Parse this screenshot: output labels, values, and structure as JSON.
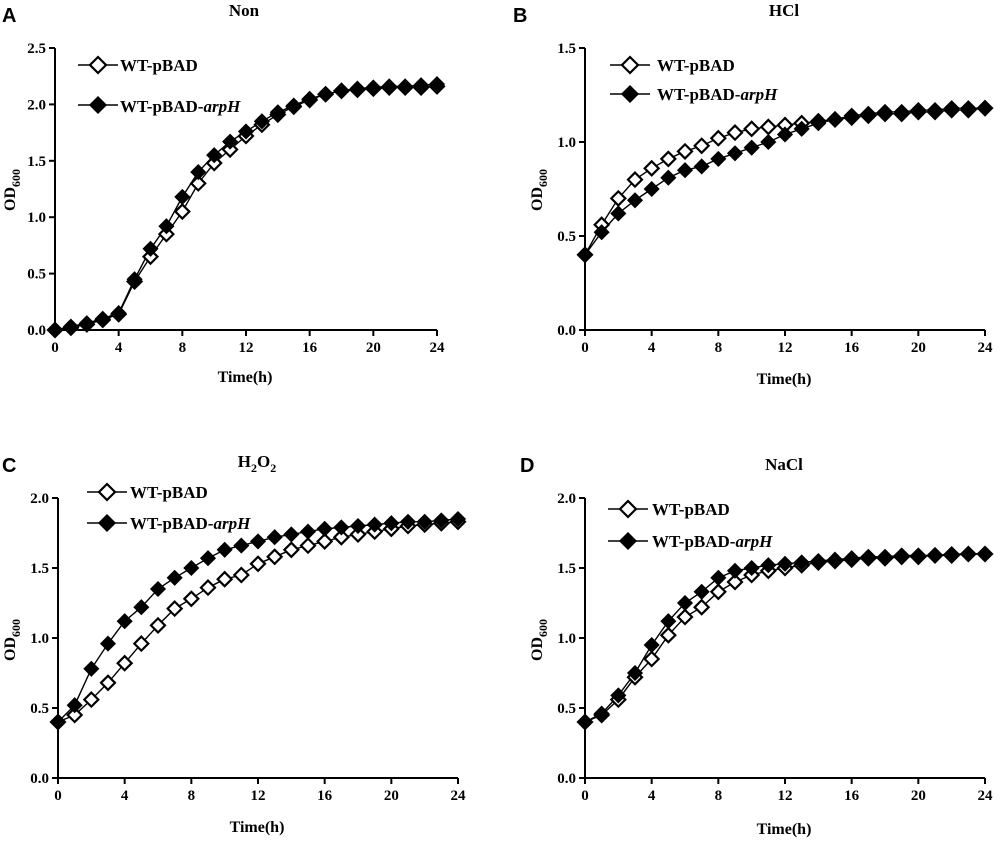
{
  "chart_data": [
    {
      "type": "line",
      "panel": "A",
      "title": "Non",
      "xlabel": "Time(h)",
      "ylabel_main": "OD",
      "ylabel_sub": "600",
      "xlim": [
        0,
        24
      ],
      "ylim": [
        0,
        2.5
      ],
      "xticks": [
        "0",
        "4",
        "8",
        "12",
        "16",
        "20",
        "24"
      ],
      "yticks": [
        "0.0",
        "0.5",
        "1.0",
        "1.5",
        "2.0",
        "2.5"
      ],
      "legend_position": "top-left",
      "series": [
        {
          "name": "WT-pBAD",
          "name_suffix": "",
          "marker": "open-diamond",
          "x": [
            0,
            1,
            2,
            3,
            4,
            5,
            6,
            7,
            8,
            9,
            10,
            11,
            12,
            13,
            14,
            15,
            16,
            17,
            18,
            19,
            20,
            21,
            22,
            23,
            24
          ],
          "y": [
            0.0,
            0.02,
            0.05,
            0.09,
            0.14,
            0.43,
            0.65,
            0.85,
            1.05,
            1.3,
            1.48,
            1.6,
            1.72,
            1.82,
            1.91,
            1.98,
            2.04,
            2.09,
            2.12,
            2.13,
            2.14,
            2.15,
            2.15,
            2.15,
            2.16
          ]
        },
        {
          "name": "WT-pBAD-",
          "name_suffix": "arpH",
          "marker": "filled-diamond",
          "x": [
            0,
            1,
            2,
            3,
            4,
            5,
            6,
            7,
            8,
            9,
            10,
            11,
            12,
            13,
            14,
            15,
            16,
            17,
            18,
            19,
            20,
            21,
            22,
            23,
            24
          ],
          "y": [
            0.0,
            0.03,
            0.06,
            0.1,
            0.15,
            0.45,
            0.72,
            0.92,
            1.18,
            1.4,
            1.55,
            1.67,
            1.76,
            1.85,
            1.93,
            1.99,
            2.05,
            2.09,
            2.12,
            2.14,
            2.15,
            2.16,
            2.16,
            2.17,
            2.18
          ]
        }
      ]
    },
    {
      "type": "line",
      "panel": "B",
      "title": "HCl",
      "xlabel": "Time(h)",
      "ylabel_main": "OD",
      "ylabel_sub": "600",
      "xlim": [
        0,
        24
      ],
      "ylim": [
        0,
        1.5
      ],
      "xticks": [
        "0",
        "4",
        "8",
        "12",
        "16",
        "20",
        "24"
      ],
      "yticks": [
        "0.0",
        "0.5",
        "1.0",
        "1.5"
      ],
      "legend_position": "top-left",
      "series": [
        {
          "name": "WT-pBAD",
          "name_suffix": "",
          "marker": "open-diamond",
          "x": [
            0,
            1,
            2,
            3,
            4,
            5,
            6,
            7,
            8,
            9,
            10,
            11,
            12,
            13,
            14,
            15,
            16,
            17,
            18,
            19,
            20,
            21,
            22,
            23,
            24
          ],
          "y": [
            0.4,
            0.56,
            0.7,
            0.8,
            0.86,
            0.91,
            0.95,
            0.98,
            1.02,
            1.05,
            1.07,
            1.08,
            1.09,
            1.1,
            1.11,
            1.12,
            1.13,
            1.14,
            1.15,
            1.15,
            1.16,
            1.16,
            1.17,
            1.17,
            1.18
          ]
        },
        {
          "name": "WT-pBAD-",
          "name_suffix": "arpH",
          "marker": "filled-diamond",
          "x": [
            0,
            1,
            2,
            3,
            4,
            5,
            6,
            7,
            8,
            9,
            10,
            11,
            12,
            13,
            14,
            15,
            16,
            17,
            18,
            19,
            20,
            21,
            22,
            23,
            24
          ],
          "y": [
            0.4,
            0.52,
            0.62,
            0.69,
            0.75,
            0.81,
            0.85,
            0.87,
            0.91,
            0.94,
            0.97,
            1.0,
            1.04,
            1.07,
            1.1,
            1.12,
            1.14,
            1.15,
            1.16,
            1.16,
            1.17,
            1.17,
            1.18,
            1.18,
            1.18
          ]
        }
      ]
    },
    {
      "type": "line",
      "panel": "C",
      "title_main": "H",
      "title_sub1": "2",
      "title_mid": "O",
      "title_sub2": "2",
      "xlabel": "Time(h)",
      "ylabel_main": "OD",
      "ylabel_sub": "600",
      "xlim": [
        0,
        24
      ],
      "ylim": [
        0,
        2.0
      ],
      "xticks": [
        "0",
        "4",
        "8",
        "12",
        "16",
        "20",
        "24"
      ],
      "yticks": [
        "0.0",
        "0.5",
        "1.0",
        "1.5",
        "2.0"
      ],
      "legend_position": "top-left",
      "series": [
        {
          "name": "WT-pBAD",
          "name_suffix": "",
          "marker": "open-diamond",
          "x": [
            0,
            1,
            2,
            3,
            4,
            5,
            6,
            7,
            8,
            9,
            10,
            11,
            12,
            13,
            14,
            15,
            16,
            17,
            18,
            19,
            20,
            21,
            22,
            23,
            24
          ],
          "y": [
            0.4,
            0.45,
            0.56,
            0.68,
            0.82,
            0.96,
            1.09,
            1.21,
            1.28,
            1.36,
            1.42,
            1.45,
            1.53,
            1.58,
            1.63,
            1.66,
            1.69,
            1.72,
            1.74,
            1.76,
            1.78,
            1.8,
            1.81,
            1.82,
            1.83
          ]
        },
        {
          "name": "WT-pBAD-",
          "name_suffix": "arpH",
          "marker": "filled-diamond",
          "x": [
            0,
            1,
            2,
            3,
            4,
            5,
            6,
            7,
            8,
            9,
            10,
            11,
            12,
            13,
            14,
            15,
            16,
            17,
            18,
            19,
            20,
            21,
            22,
            23,
            24
          ],
          "y": [
            0.4,
            0.52,
            0.78,
            0.96,
            1.12,
            1.22,
            1.35,
            1.43,
            1.5,
            1.57,
            1.63,
            1.66,
            1.69,
            1.72,
            1.74,
            1.76,
            1.78,
            1.79,
            1.8,
            1.81,
            1.82,
            1.83,
            1.83,
            1.84,
            1.85
          ]
        }
      ]
    },
    {
      "type": "line",
      "panel": "D",
      "title": "NaCl",
      "xlabel": "Time(h)",
      "ylabel_main": "OD",
      "ylabel_sub": "600",
      "xlim": [
        0,
        24
      ],
      "ylim": [
        0,
        2.0
      ],
      "xticks": [
        "0",
        "4",
        "8",
        "12",
        "16",
        "20",
        "24"
      ],
      "yticks": [
        "0.0",
        "0.5",
        "1.0",
        "1.5",
        "2.0"
      ],
      "legend_position": "top-left",
      "series": [
        {
          "name": "WT-pBAD",
          "name_suffix": "",
          "marker": "open-diamond",
          "x": [
            0,
            1,
            2,
            3,
            4,
            5,
            6,
            7,
            8,
            9,
            10,
            11,
            12,
            13,
            14,
            15,
            16,
            17,
            18,
            19,
            20,
            21,
            22,
            23,
            24
          ],
          "y": [
            0.4,
            0.45,
            0.56,
            0.72,
            0.85,
            1.02,
            1.15,
            1.22,
            1.33,
            1.4,
            1.45,
            1.48,
            1.5,
            1.52,
            1.54,
            1.55,
            1.56,
            1.57,
            1.57,
            1.58,
            1.58,
            1.59,
            1.59,
            1.6,
            1.6
          ]
        },
        {
          "name": "WT-pBAD-",
          "name_suffix": "arpH",
          "marker": "filled-diamond",
          "x": [
            0,
            1,
            2,
            3,
            4,
            5,
            6,
            7,
            8,
            9,
            10,
            11,
            12,
            13,
            14,
            15,
            16,
            17,
            18,
            19,
            20,
            21,
            22,
            23,
            24
          ],
          "y": [
            0.4,
            0.46,
            0.59,
            0.75,
            0.95,
            1.12,
            1.25,
            1.33,
            1.43,
            1.48,
            1.5,
            1.52,
            1.53,
            1.54,
            1.55,
            1.56,
            1.57,
            1.58,
            1.58,
            1.59,
            1.59,
            1.59,
            1.6,
            1.6,
            1.6
          ]
        }
      ]
    }
  ],
  "colors": {
    "line": "#000000",
    "open_fill": "#ffffff",
    "filled_fill": "#000000",
    "background": "#ffffff"
  }
}
